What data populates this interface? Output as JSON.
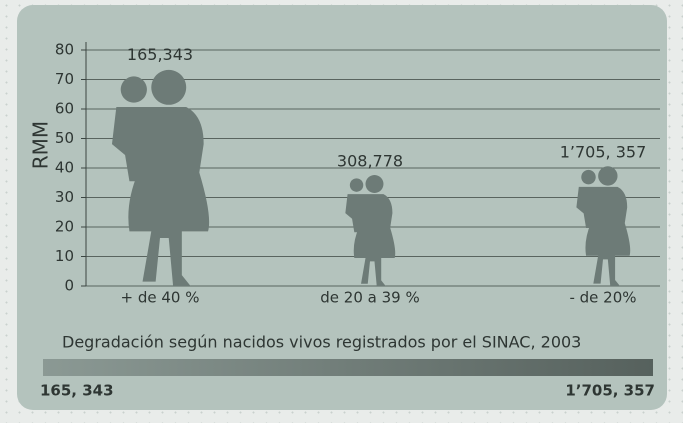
{
  "chart_data": {
    "type": "pictogram",
    "ylabel": "RMM",
    "categories": [
      "+ de 40 %",
      "de 20 a 39 %",
      "- de 20%"
    ],
    "values": [
      74,
      38,
      41
    ],
    "annotations": [
      "165,343",
      "308,778",
      "1’705, 357"
    ],
    "color": "#6d7b77",
    "ylim": [
      0,
      80
    ],
    "yticks": [
      0,
      10,
      20,
      30,
      40,
      50,
      60,
      70,
      80
    ],
    "grid": true,
    "scale_title": "Degradación según nacidos vivos registrados por el SINAC, 2003",
    "scale_colors": [
      "#8b9994",
      "#56615d"
    ],
    "scale_min_label": "165, 343",
    "scale_max_label": "1’705, 357"
  }
}
